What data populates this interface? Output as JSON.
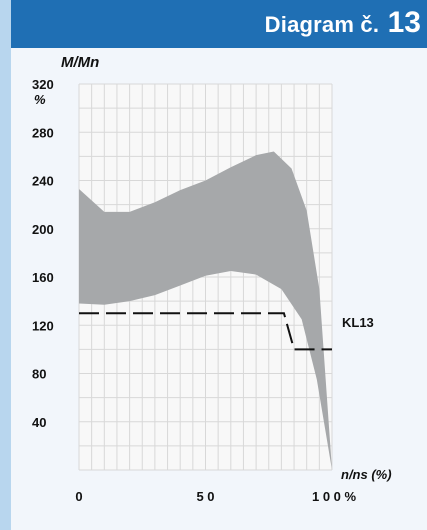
{
  "header": {
    "title_prefix": "Diagram č.",
    "title_number": "13"
  },
  "chart_data": {
    "type": "area",
    "x_range": [
      0,
      100
    ],
    "y_range": [
      0,
      320
    ],
    "ylabel": "M/Mn",
    "y_unit": "%",
    "xlabel": "n/ns (%)",
    "grid": true,
    "x_ticks": [
      {
        "value": 0,
        "label": "0"
      },
      {
        "value": 50,
        "label": "5 0"
      },
      {
        "value": 100,
        "label": "1 0 0 %"
      }
    ],
    "y_ticks": [
      {
        "value": 320,
        "label": "320"
      },
      {
        "value": 280,
        "label": "280"
      },
      {
        "value": 240,
        "label": "240"
      },
      {
        "value": 200,
        "label": "200"
      },
      {
        "value": 160,
        "label": "160"
      },
      {
        "value": 120,
        "label": "120"
      },
      {
        "value": 80,
        "label": "80"
      },
      {
        "value": 40,
        "label": "40"
      }
    ],
    "band": {
      "upper": [
        {
          "x": 0,
          "y": 233
        },
        {
          "x": 10,
          "y": 214
        },
        {
          "x": 20,
          "y": 214
        },
        {
          "x": 30,
          "y": 222
        },
        {
          "x": 40,
          "y": 232
        },
        {
          "x": 50,
          "y": 240
        },
        {
          "x": 60,
          "y": 251
        },
        {
          "x": 70,
          "y": 261
        },
        {
          "x": 77,
          "y": 264
        },
        {
          "x": 84,
          "y": 250
        },
        {
          "x": 90,
          "y": 215
        },
        {
          "x": 95,
          "y": 150
        },
        {
          "x": 100,
          "y": 0
        }
      ],
      "lower": [
        {
          "x": 0,
          "y": 138
        },
        {
          "x": 10,
          "y": 137
        },
        {
          "x": 20,
          "y": 140
        },
        {
          "x": 30,
          "y": 145
        },
        {
          "x": 40,
          "y": 153
        },
        {
          "x": 50,
          "y": 161
        },
        {
          "x": 60,
          "y": 165
        },
        {
          "x": 70,
          "y": 162
        },
        {
          "x": 80,
          "y": 150
        },
        {
          "x": 88,
          "y": 125
        },
        {
          "x": 94,
          "y": 75
        },
        {
          "x": 100,
          "y": 0
        }
      ],
      "color": "#a6a8aa"
    },
    "series": [
      {
        "name": "KL13",
        "style": "dashed",
        "color": "#111111",
        "points": [
          {
            "x": 0,
            "y": 130
          },
          {
            "x": 81,
            "y": 130
          },
          {
            "x": 85,
            "y": 100
          },
          {
            "x": 100,
            "y": 100
          }
        ]
      }
    ]
  }
}
